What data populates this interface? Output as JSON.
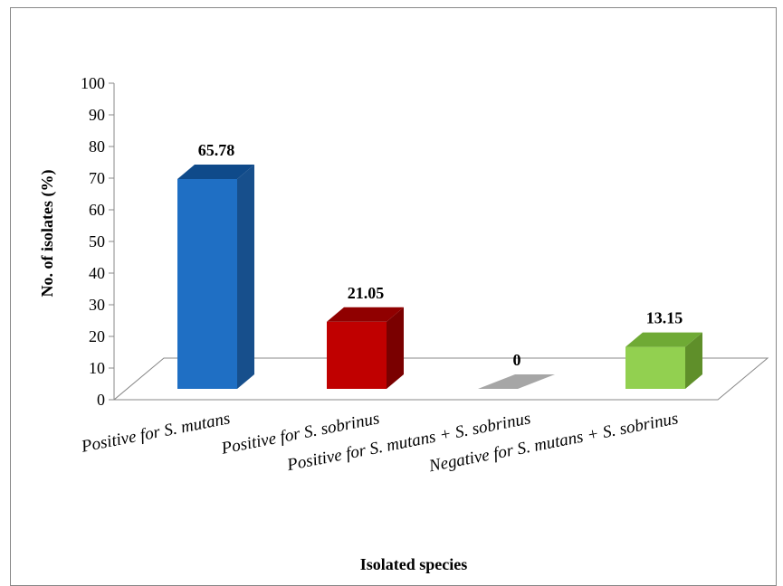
{
  "chart_data": {
    "type": "bar",
    "style": "3d-column",
    "categories": [
      "Positive for S. mutans",
      "Positive for S. sobrinus",
      "Positive for S. mutans + S. sobrinus",
      "Negative for S. mutans + S. sobrinus"
    ],
    "values": [
      65.78,
      21.05,
      0,
      13.15
    ],
    "data_labels": [
      "65.78",
      "21.05",
      "0",
      "13.15"
    ],
    "colors": [
      "#1f6fc4",
      "#c00000",
      "#a6a6a6",
      "#92d050"
    ],
    "side_colors": [
      "#174f8c",
      "#7a0000",
      "#7f7f7f",
      "#5f8f2a"
    ],
    "top_colors": [
      "#0f4a8a",
      "#900000",
      "#8c8c8c",
      "#6faa35"
    ],
    "ylim": [
      0,
      100
    ],
    "yticks": [
      0,
      10,
      20,
      30,
      40,
      50,
      60,
      70,
      80,
      90,
      100
    ],
    "xlabel": "Isolated species",
    "ylabel": "No. of isolates (%)",
    "grid": false,
    "legend": "none"
  }
}
